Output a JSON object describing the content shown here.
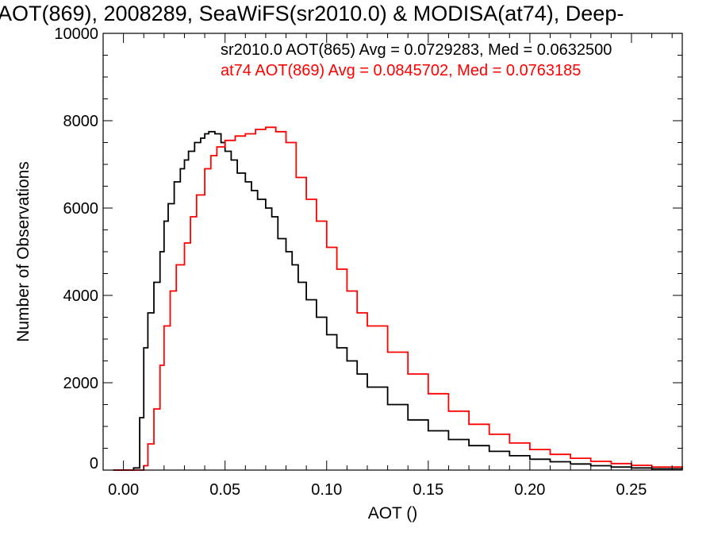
{
  "chart_data": {
    "type": "histogram",
    "title": "AOT(869), 2008289, SeaWiFS(sr2010.0) & MODISA(at74), Deep-",
    "xlabel": "AOT ()",
    "ylabel": "Number of Observations",
    "xlim": [
      -0.01,
      0.275
    ],
    "ylim": [
      0,
      10000
    ],
    "x_ticks": [
      "0.00",
      "0.05",
      "0.10",
      "0.15",
      "0.20",
      "0.25"
    ],
    "y_ticks": [
      "0",
      "2000",
      "4000",
      "6000",
      "8000",
      "10000"
    ],
    "grid": false,
    "annotations": [
      {
        "text": "sr2010.0 AOT(865) Avg = 0.0729283, Med = 0.0632500",
        "color": "#000000"
      },
      {
        "text": "at74 AOT(869) Avg = 0.0845702, Med = 0.0763185",
        "color": "#ff0000"
      }
    ],
    "series": [
      {
        "color": "#000000",
        "x": [
          -0.005,
          0.0,
          0.005,
          0.008,
          0.01,
          0.012,
          0.015,
          0.018,
          0.02,
          0.022,
          0.025,
          0.028,
          0.03,
          0.032,
          0.035,
          0.038,
          0.04,
          0.042,
          0.045,
          0.048,
          0.05,
          0.053,
          0.056,
          0.06,
          0.063,
          0.066,
          0.07,
          0.073,
          0.076,
          0.08,
          0.083,
          0.086,
          0.09,
          0.095,
          0.1,
          0.105,
          0.11,
          0.115,
          0.12,
          0.13,
          0.14,
          0.15,
          0.16,
          0.17,
          0.18,
          0.19,
          0.2,
          0.21,
          0.22,
          0.23,
          0.24,
          0.25,
          0.26,
          0.275
        ],
        "values": [
          0,
          0,
          50,
          1200,
          2800,
          3600,
          4300,
          5000,
          5700,
          6100,
          6600,
          6900,
          7100,
          7300,
          7500,
          7600,
          7700,
          7750,
          7700,
          7500,
          7300,
          7100,
          6800,
          6600,
          6400,
          6200,
          6000,
          5800,
          5300,
          5000,
          4700,
          4300,
          3900,
          3500,
          3100,
          2800,
          2500,
          2200,
          1900,
          1500,
          1150,
          900,
          700,
          560,
          430,
          330,
          250,
          190,
          140,
          100,
          70,
          50,
          30,
          15
        ]
      },
      {
        "color": "#ff0000",
        "x": [
          -0.005,
          0.0,
          0.005,
          0.01,
          0.012,
          0.015,
          0.018,
          0.02,
          0.023,
          0.026,
          0.03,
          0.033,
          0.036,
          0.04,
          0.043,
          0.046,
          0.05,
          0.055,
          0.06,
          0.065,
          0.07,
          0.075,
          0.08,
          0.085,
          0.09,
          0.095,
          0.1,
          0.105,
          0.11,
          0.115,
          0.12,
          0.13,
          0.14,
          0.15,
          0.16,
          0.17,
          0.18,
          0.19,
          0.2,
          0.21,
          0.22,
          0.23,
          0.24,
          0.25,
          0.26,
          0.275
        ],
        "values": [
          0,
          0,
          0,
          100,
          600,
          1400,
          2400,
          3300,
          4100,
          4700,
          5200,
          5800,
          6300,
          6900,
          7200,
          7400,
          7550,
          7650,
          7700,
          7800,
          7850,
          7750,
          7500,
          6700,
          6200,
          5700,
          5100,
          4600,
          4100,
          3600,
          3300,
          2700,
          2200,
          1750,
          1350,
          1050,
          820,
          620,
          470,
          360,
          270,
          200,
          150,
          110,
          70,
          30
        ]
      }
    ]
  }
}
